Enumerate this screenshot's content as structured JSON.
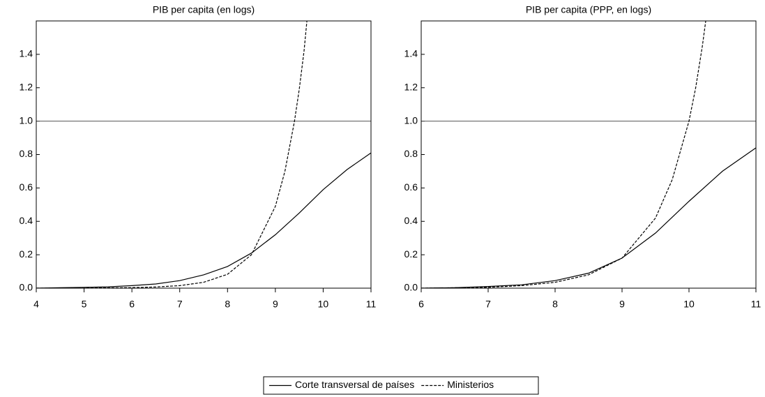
{
  "chart_data": [
    {
      "type": "line",
      "title": "PIB per capita (en logs)",
      "xlim": [
        4,
        11
      ],
      "xticks": [
        4,
        5,
        6,
        7,
        8,
        9,
        10,
        11
      ],
      "ylim": [
        0,
        1.6
      ],
      "yticks": [
        {
          "value": 0,
          "label": "0.0"
        },
        0.2,
        0.4,
        0.6,
        0.8,
        {
          "value": 1,
          "label": "1.0"
        },
        1.2,
        1.4
      ],
      "reference_line": 1,
      "series": [
        {
          "name": "Corte transversal de países",
          "color": "#000000",
          "line_style": "solid",
          "x": [
            4,
            4.5,
            5,
            5.5,
            6,
            6.5,
            7,
            7.5,
            8,
            8.5,
            9,
            9.5,
            10,
            10.5,
            11
          ],
          "values": [
            0,
            0.003,
            0.005,
            0.008,
            0.015,
            0.025,
            0.045,
            0.08,
            0.13,
            0.21,
            0.32,
            0.45,
            0.59,
            0.71,
            0.81
          ]
        },
        {
          "name": "Ministerios",
          "color": "#000000",
          "line_style": "dashed",
          "x": [
            4,
            5,
            6,
            6.5,
            7,
            7.5,
            8,
            8.5,
            9,
            9.2,
            9.4,
            9.5,
            9.6,
            9.66
          ],
          "values": [
            0,
            0.001,
            0.003,
            0.007,
            0.015,
            0.035,
            0.083,
            0.2,
            0.49,
            0.7,
            1.0,
            1.19,
            1.42,
            1.6
          ]
        }
      ]
    },
    {
      "type": "line",
      "title": "PIB per capita (PPP, en logs)",
      "xlim": [
        6,
        11
      ],
      "xticks": [
        6,
        7,
        8,
        9,
        10,
        11
      ],
      "ylim": [
        0,
        1.6
      ],
      "yticks": [
        {
          "value": 0,
          "label": "0.0"
        },
        0.2,
        0.4,
        0.6,
        0.8,
        {
          "value": 1,
          "label": "1.0"
        },
        1.2,
        1.4
      ],
      "reference_line": 1,
      "series": [
        {
          "name": "Corte transversal de países",
          "color": "#000000",
          "line_style": "solid",
          "x": [
            6,
            6.5,
            7,
            7.5,
            8,
            8.5,
            9,
            9.5,
            10,
            10.5,
            11
          ],
          "values": [
            0,
            0.003,
            0.01,
            0.02,
            0.045,
            0.09,
            0.18,
            0.33,
            0.52,
            0.7,
            0.84
          ]
        },
        {
          "name": "Ministerios",
          "color": "#000000",
          "line_style": "dashed",
          "x": [
            6,
            7,
            7.5,
            8,
            8.5,
            9,
            9.5,
            9.75,
            10,
            10.1,
            10.2,
            10.25
          ],
          "values": [
            0,
            0.005,
            0.015,
            0.035,
            0.08,
            0.18,
            0.42,
            0.65,
            1.0,
            1.2,
            1.45,
            1.6
          ]
        }
      ]
    }
  ]
}
